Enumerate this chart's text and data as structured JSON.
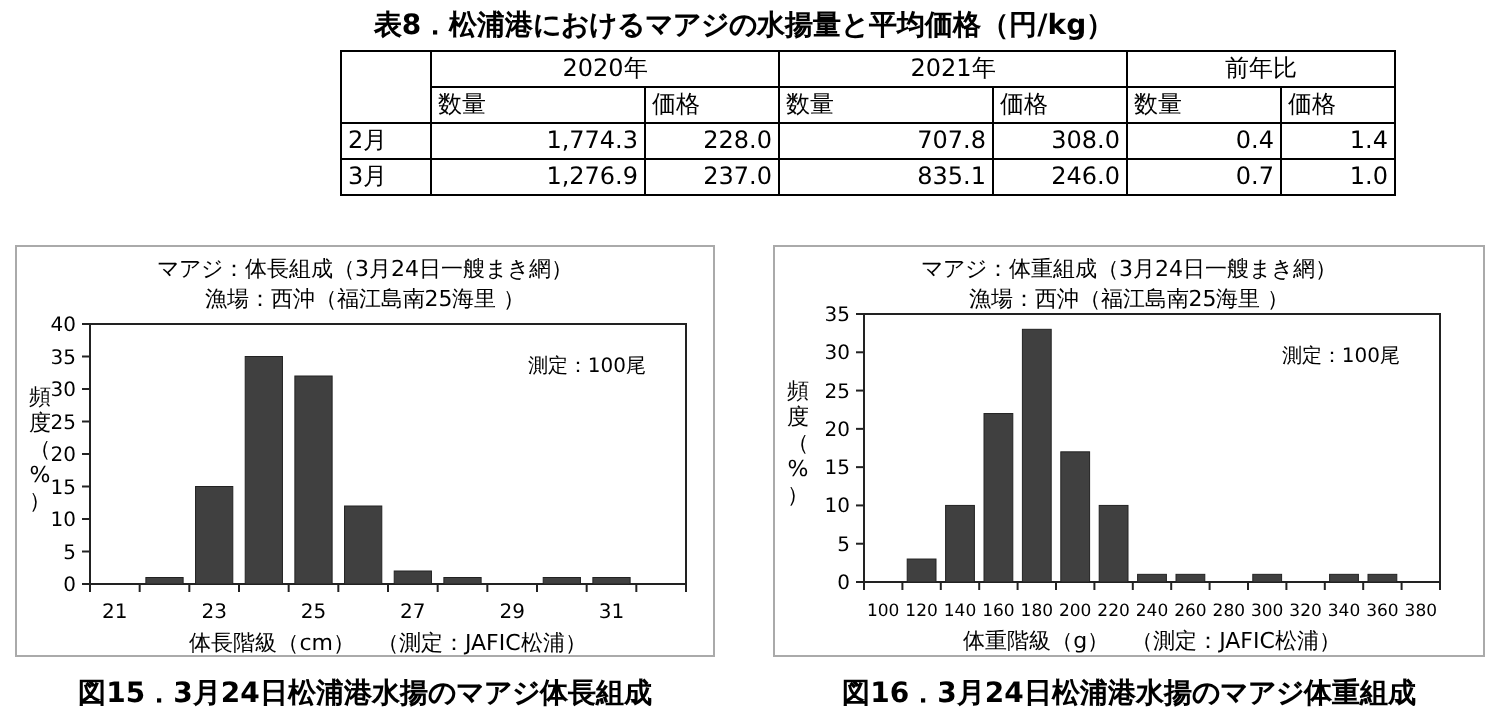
{
  "chart_data": [
    {
      "type": "other",
      "title": "表8．松浦港におけるマアジの水揚量と平均価格（円/kg）",
      "annotations": [
        "2020年",
        "2021年",
        "前年比",
        "数量",
        "価格",
        "数量",
        "価格",
        "数量",
        "価格",
        "2月",
        "1,774.3",
        "228.0",
        "707.8",
        "308.0",
        "0.4",
        "1.4",
        "3月",
        "1,276.9",
        "237.0",
        "835.1",
        "246.0",
        "0.7",
        "1.0"
      ]
    },
    {
      "type": "bar",
      "title": "マアジ：体長組成（3月24日一艘まき網）",
      "subtitle": "漁場：西沖（福江島南25海里 ）",
      "xlabel": "体長階級（cm）　（測定：JAFIC松浦）",
      "ylabel": "頻度（%）",
      "categories": [
        "21",
        null,
        "23",
        null,
        "25",
        null,
        "27",
        null,
        "29",
        null,
        "31",
        null
      ],
      "values": [
        0,
        1,
        15,
        35,
        32,
        12,
        2,
        1,
        0,
        1,
        1,
        0
      ],
      "color": "#404040",
      "ylim": [
        0,
        40
      ],
      "yticks": [
        0,
        5,
        10,
        15,
        20,
        25,
        30,
        35,
        40
      ],
      "grid": false,
      "annotations": [
        "測定：100尾",
        "図15．3月24日松浦港水揚のマアジ体長組成"
      ]
    },
    {
      "type": "bar",
      "title": "マアジ：体重組成（3月24日一艘まき網）",
      "subtitle": "漁場：西沖（福江島南25海里 ）",
      "xlabel": "体重階級（g）　（測定：JAFIC松浦）",
      "ylabel": "頻度（%）",
      "categories": [
        "100",
        "120",
        "140",
        "160",
        "180",
        "200",
        "220",
        "240",
        "260",
        "280",
        "300",
        "320",
        "340",
        "360",
        "380"
      ],
      "values": [
        0,
        3,
        10,
        22,
        33,
        17,
        10,
        1,
        1,
        0,
        1,
        0,
        1,
        1,
        0
      ],
      "color": "#404040",
      "ylim": [
        0,
        35
      ],
      "yticks": [
        0,
        5,
        10,
        15,
        20,
        25,
        30,
        35
      ],
      "grid": false,
      "annotations": [
        "測定：100尾",
        "図16．3月24日松浦港水揚のマアジ体重組成"
      ]
    }
  ]
}
